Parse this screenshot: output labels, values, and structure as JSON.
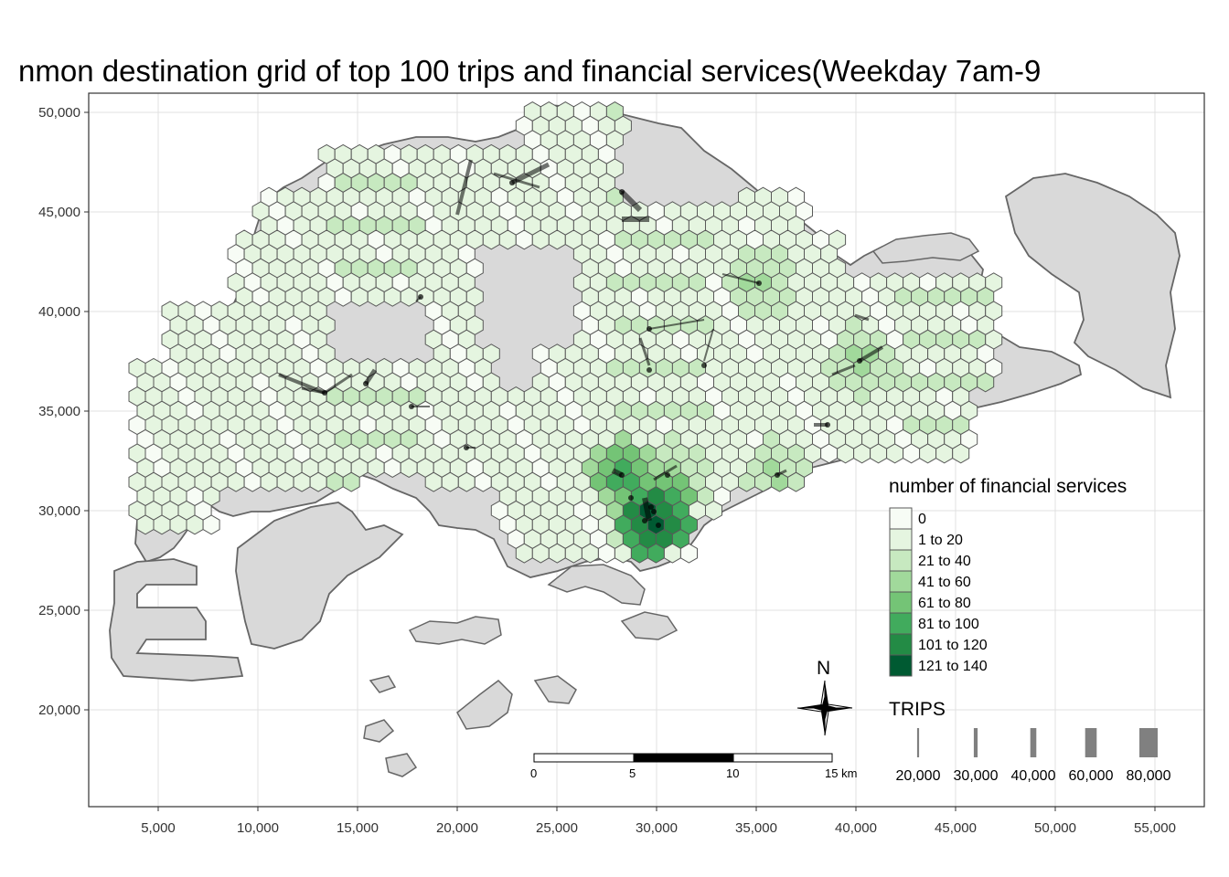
{
  "title": "nmon destination grid of top 100 trips and financial services(Weekday 7am-9",
  "axes": {
    "x_ticks": [
      "5,000",
      "10,000",
      "15,000",
      "20,000",
      "25,000",
      "30,000",
      "35,000",
      "40,000",
      "45,000",
      "50,000",
      "55,000"
    ],
    "x_values": [
      5000,
      10000,
      15000,
      20000,
      25000,
      30000,
      35000,
      40000,
      45000,
      50000,
      55000
    ],
    "y_ticks": [
      "50,000",
      "45,000",
      "40,000",
      "35,000",
      "30,000",
      "25,000",
      "20,000"
    ],
    "y_values": [
      50000,
      45000,
      40000,
      35000,
      30000,
      25000,
      20000
    ]
  },
  "legend_fill": {
    "title": "number of financial services",
    "items": [
      {
        "label": "0",
        "color": "#f7fcf5"
      },
      {
        "label": "1 to 20",
        "color": "#e5f5e0"
      },
      {
        "label": "21 to 40",
        "color": "#c7e9c0"
      },
      {
        "label": "41 to 60",
        "color": "#a1d99b"
      },
      {
        "label": "61 to 80",
        "color": "#74c476"
      },
      {
        "label": "81 to 100",
        "color": "#41ab5d"
      },
      {
        "label": "101 to 120",
        "color": "#238b45"
      },
      {
        "label": "121 to 140",
        "color": "#005a32"
      }
    ]
  },
  "legend_trips": {
    "title": "TRIPS",
    "items": [
      {
        "label": "20,000",
        "value": 20000
      },
      {
        "label": "30,000",
        "value": 30000
      },
      {
        "label": "40,000",
        "value": 40000
      },
      {
        "label": "60,000",
        "value": 60000
      },
      {
        "label": "80,000",
        "value": 80000
      }
    ]
  },
  "scale_bar": {
    "labels": [
      "0",
      "5",
      "10",
      "15 km"
    ]
  },
  "north_arrow": {
    "label": "N"
  },
  "colors": {
    "land": "#d9d9d9",
    "land_stroke": "#666666",
    "hex_stroke": "#595959",
    "grid": "#e0e0e0",
    "flow": "#000000"
  }
}
